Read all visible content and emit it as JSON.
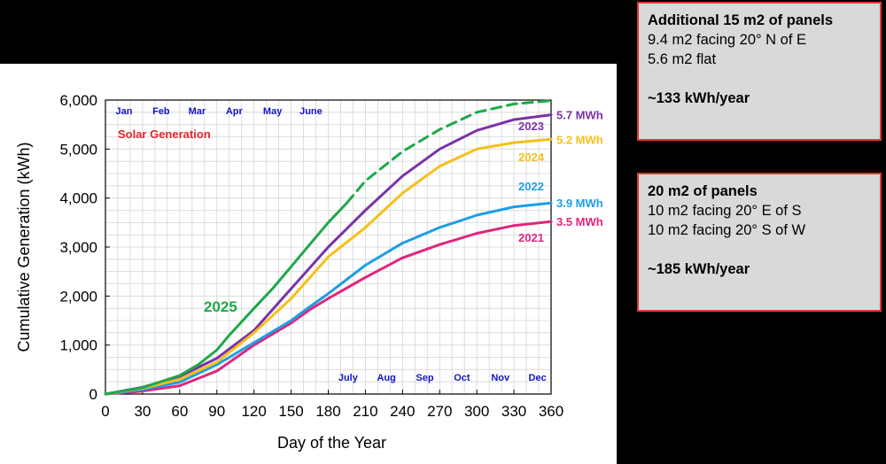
{
  "chart_data": {
    "type": "line",
    "title": "Solar Generation",
    "xlabel": "Day of the Year",
    "ylabel": "Cumulative Generation (kWh)",
    "xlim": [
      0,
      360
    ],
    "ylim": [
      0,
      6000
    ],
    "xticks": [
      "0",
      "30",
      "60",
      "90",
      "120",
      "150",
      "180",
      "210",
      "240",
      "270",
      "300",
      "330",
      "360"
    ],
    "yticks": [
      "0",
      "1,000",
      "2,000",
      "3,000",
      "4,000",
      "5,000",
      "6,000"
    ],
    "grid": true,
    "months_top": [
      "Jan",
      "Feb",
      "Mar",
      "Apr",
      "May",
      "June"
    ],
    "months_bottom": [
      "July",
      "Aug",
      "Sep",
      "Oct",
      "Nov",
      "Dec"
    ],
    "series": [
      {
        "name": "2021",
        "color": "#e0267c",
        "x": [
          0,
          30,
          60,
          90,
          120,
          150,
          165,
          180,
          210,
          240,
          270,
          300,
          330,
          360
        ],
        "y": [
          0,
          60,
          170,
          470,
          1000,
          1450,
          1720,
          1950,
          2380,
          2780,
          3050,
          3280,
          3440,
          3520
        ],
        "end_label": "3.5 MWh"
      },
      {
        "name": "2022",
        "color": "#1e9ee6",
        "x": [
          0,
          30,
          60,
          90,
          120,
          150,
          165,
          180,
          210,
          240,
          270,
          300,
          330,
          360
        ],
        "y": [
          0,
          90,
          240,
          600,
          1050,
          1500,
          1780,
          2050,
          2630,
          3080,
          3400,
          3650,
          3820,
          3900
        ],
        "end_label": "3.9 MWh"
      },
      {
        "name": "2023",
        "color": "#7a33a8",
        "x": [
          0,
          30,
          60,
          90,
          120,
          150,
          180,
          210,
          240,
          270,
          300,
          330,
          360
        ],
        "y": [
          0,
          140,
          360,
          730,
          1300,
          2150,
          3000,
          3750,
          4450,
          5000,
          5380,
          5600,
          5700
        ],
        "end_label": "5.7 MWh"
      },
      {
        "name": "2024",
        "color": "#f6bf1a",
        "x": [
          0,
          30,
          60,
          90,
          120,
          150,
          180,
          210,
          240,
          270,
          300,
          330,
          360
        ],
        "y": [
          0,
          120,
          300,
          650,
          1250,
          1950,
          2800,
          3400,
          4100,
          4650,
          5000,
          5130,
          5200
        ],
        "end_label": "5.2 MWh"
      },
      {
        "name": "2025",
        "color": "#1fa84a",
        "x": [
          0,
          30,
          60,
          75,
          90,
          100,
          120,
          135,
          150,
          165,
          180,
          195
        ],
        "y": [
          0,
          130,
          380,
          600,
          900,
          1200,
          1750,
          2150,
          2600,
          3050,
          3500,
          3900
        ]
      },
      {
        "name": "2025",
        "color": "#1fa84a",
        "dashed": true,
        "x": [
          195,
          210,
          240,
          270,
          300,
          330,
          360
        ],
        "y": [
          3900,
          4350,
          4950,
          5400,
          5750,
          5920,
          5990
        ]
      }
    ],
    "annotations": [
      "2025",
      "2023",
      "2024",
      "2022",
      "2021"
    ]
  },
  "info_boxes": [
    {
      "title": "Additional 15 m2 of panels",
      "lines": [
        "9.4 m2 facing 20° N of E",
        "5.6 m2 flat"
      ],
      "total": "~133 kWh/year"
    },
    {
      "title": "20 m2 of panels",
      "lines": [
        "10 m2 facing 20° E of S",
        "10 m2 facing 20° S of W"
      ],
      "total": "~185 kWh/year"
    }
  ]
}
